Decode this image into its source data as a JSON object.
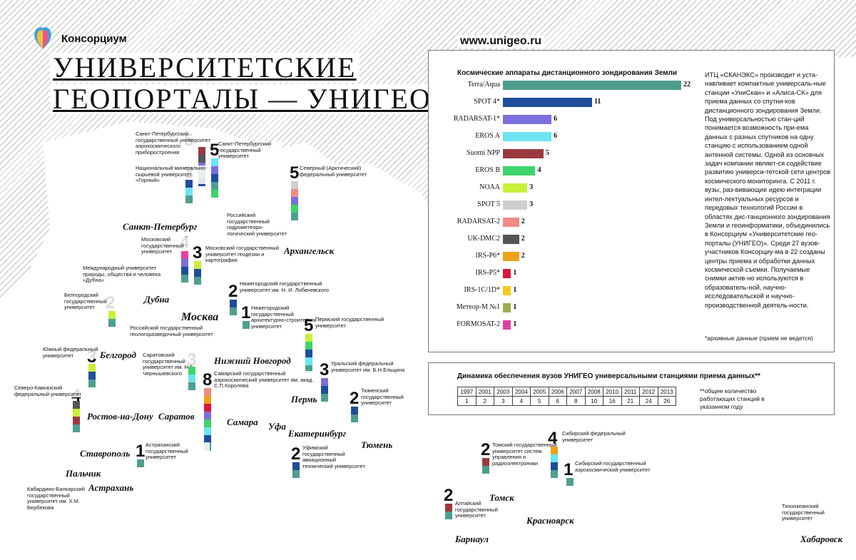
{
  "colors": {
    "Terra/Aqua": "#4e9e90",
    "SPOT 4*": "#1f4d9a",
    "RADARSAT-1*": "#7b6fdc",
    "EROS A": "#6de4f2",
    "Suomi NPP": "#9a3a3f",
    "EROS B": "#3fd46a",
    "NOAA": "#c8ef3a",
    "SPOT 5": "#cfcfcf",
    "RADARSAT-2": "#f08a86",
    "UK-DMC2": "#555555",
    "IRS-P6*": "#eea21a",
    "IRS-P5*": "#d8173b",
    "IRS-1C/1D*": "#f2cb1f",
    "Метеор-М №1": "#a0ac50",
    "FORMOSAT-2": "#e040a0"
  },
  "header": {
    "brand": "Консорциум",
    "title_line1": "УНИВЕРСИТЕТСКИЕ",
    "title_line2": "ГЕОПОРТАЛЫ — УНИГЕО",
    "site": "www.unigeo.ru"
  },
  "chart_data": {
    "type": "bar",
    "title": "Космические аппараты дистанционного зондирования Земли",
    "categories": [
      "Terra/Aqua",
      "SPOT 4*",
      "RADARSAT-1*",
      "EROS A",
      "Suomi NPP",
      "EROS B",
      "NOAA",
      "SPOT 5",
      "RADARSAT-2",
      "UK-DMC2",
      "IRS-P6*",
      "IRS-P5*",
      "IRS-1C/1D*",
      "Метеор-М №1",
      "FORMOSAT-2"
    ],
    "values": [
      22,
      11,
      6,
      6,
      5,
      4,
      3,
      3,
      2,
      2,
      2,
      1,
      1,
      1,
      1
    ],
    "xlim": [
      0,
      22
    ]
  },
  "side_text": "ИТЦ «СКАНЭКС» производит и уста-навливает компактные универсаль-ные станции «УниСкан» и «Алиса-СК» для приема данных со спутни-ков дистанционного зондирования Земли. Под универсальностью стан-ций понимается возможность при-ема данных с разных спутников на одну станцию с использованием одной антенной системы. Одной из основных задач компании являет-ся содействие развитию универси-тетской сети центров космического мониторинга. С 2011 г. вузы, раз-вивающие идею интеграции интел-лектуальных ресурсов и передовых технологий России в областях дис-танционного зондирования Земли и геоинформатики, объединились в Консорциум «Университетские гео-порталы (УНИГЕО)». Среди 27 вузов-участников Консорциу-ма в 22 созданы центры приема и обработки данных космической съемки. Получаемые снимки актив-но используются в образователь-ной, научно-исследовательской и научно-производственной деятель-ности.",
  "archive_note": "*архивные данные (прием не ведется)",
  "dynamics": {
    "title": "Динамика обеспечения вузов УНИГЕО универсальными станциями приема данных**",
    "years": [
      "1997",
      "2001",
      "2003",
      "2004",
      "2005",
      "2006",
      "2007",
      "2008",
      "2010",
      "2011",
      "2012",
      "2013"
    ],
    "counts": [
      "1",
      "2",
      "3",
      "4",
      "5",
      "6",
      "8",
      "10",
      "16",
      "21",
      "24",
      "26"
    ],
    "note": "**общее количество работающих станций в указанном году"
  },
  "universities": [
    {
      "num": "5",
      "text": "Санкт-Петербургский государственный университет аэрокосмического приборостроения",
      "stack": [
        "#9a3a3f",
        "#555555",
        "#7b6fdc",
        "#4e9e90",
        "#1f4d9a"
      ]
    },
    {
      "num": "5",
      "text": "Санкт-Петербургский государственный университет",
      "stack": [
        "#6de4f2",
        "#7b6fdc",
        "#1f4d9a",
        "#4e9e90",
        "#3fd46a"
      ]
    },
    {
      "num": "3",
      "text": "Национальный минерально-сырьевой университет «Горный»",
      "stack": [
        "#1f4d9a",
        "#6de4f2",
        "#4e9e90"
      ]
    },
    {
      "num": "",
      "text": "Российский государственный гидрометеоро-логический университет",
      "stack": []
    },
    {
      "num": "5",
      "text": "Северный (Арктический) федеральный университет",
      "stack": [
        "#cfcfcf",
        "#f08a86",
        "#7b6fdc",
        "#3fd46a",
        "#4e9e90"
      ]
    },
    {
      "num": "4",
      "text": "Московский государственный университет",
      "stack": [
        "#e040a0",
        "#7b6fdc",
        "#1f4d9a",
        "#4e9e90"
      ]
    },
    {
      "num": "3",
      "text": "Московский государственный университет геодезии и картографии",
      "stack": [
        "#c8ef3a",
        "#1f4d9a",
        "#4e9e90"
      ]
    },
    {
      "num": "",
      "text": "Международный университет природы, общества и человека «Дубна»",
      "stack": []
    },
    {
      "num": "2",
      "text": "Белгородский государственный университет",
      "stack": [
        "#c8ef3a",
        "#4e9e90"
      ]
    },
    {
      "num": "2",
      "text": "Нижегородский государственный университет им. Н. И. Лобачевского",
      "stack": [
        "#1f4d9a",
        "#4e9e90"
      ]
    },
    {
      "num": "1",
      "text": "Нижегородский государственный архитектурно-строительный университет",
      "stack": [
        "#4e9e90"
      ]
    },
    {
      "num": "",
      "text": "Российский государственный геологоразведочный университет",
      "stack": []
    },
    {
      "num": "5",
      "text": "Пермский государственный университет",
      "stack": [
        "#c8ef3a",
        "#3fd46a",
        "#1f4d9a",
        "#6de4f2",
        "#4e9e90"
      ]
    },
    {
      "num": "3",
      "text": "Южный федеральный университет",
      "stack": [
        "#c8ef3a",
        "#1f4d9a",
        "#4e9e90"
      ]
    },
    {
      "num": "3",
      "text": "Саратовский государственный университет им. Н.Г. Чернышевского",
      "stack": [
        "#3fd46a",
        "#6de4f2",
        "#4e9e90"
      ]
    },
    {
      "num": "8",
      "text": "Самарский государственный аэрокосмический университет им. акад. С.П.Королева",
      "stack": [
        "#f08a86",
        "#eea21a",
        "#d8173b",
        "#7b6fdc",
        "#3fd46a",
        "#6de4f2",
        "#1f4d9a",
        "#4e9e90"
      ]
    },
    {
      "num": "3",
      "text": "Уральский федеральный университет им. Б.Н.Ельцина",
      "stack": [
        "#7b6fdc",
        "#1f4d9a",
        "#4e9e90"
      ]
    },
    {
      "num": "2",
      "text": "Тюменский государственный университет",
      "stack": [
        "#1f4d9a",
        "#4e9e90"
      ]
    },
    {
      "num": "4",
      "text": "Северо-Кавказский федеральный университет",
      "stack": [
        "#555555",
        "#c8ef3a",
        "#9a3a3f",
        "#4e9e90"
      ]
    },
    {
      "num": "1",
      "text": "Астраханский государственный университет",
      "stack": [
        "#4e9e90"
      ]
    },
    {
      "num": "2",
      "text": "Уфимский государственный авиационный технический университет",
      "stack": [
        "#1f4d9a",
        "#4e9e90"
      ]
    },
    {
      "num": "",
      "text": "Кабардино-Балкарский государственный университет им. Х.М. Бербекова",
      "stack": []
    },
    {
      "num": "2",
      "text": "Томский государственный университет систем управления и радиоэлектроники",
      "stack": [
        "#9a3a3f",
        "#4e9e90"
      ]
    },
    {
      "num": "4",
      "text": "Сибирский федеральный университет",
      "stack": [
        "#eea21a",
        "#6de4f2",
        "#1f4d9a",
        "#4e9e90"
      ]
    },
    {
      "num": "1",
      "text": "Сибирский государственный аэрокосмический университет",
      "stack": [
        "#4e9e90"
      ]
    },
    {
      "num": "2",
      "text": "Алтайский государственный университет",
      "stack": [
        "#9a3a3f",
        "#4e9e90"
      ]
    },
    {
      "num": "",
      "text": "Тихоокеанский государственный университет",
      "stack": []
    }
  ],
  "cities": [
    "Санкт-Петербург",
    "Архангельск",
    "Дубна",
    "Москва",
    "Белгород",
    "Нижний Новгород",
    "Пермь",
    "Ростов-на-Дону",
    "Саратов",
    "Самара",
    "Уфа",
    "Екатеринбург",
    "Тюмень",
    "Ставрополь",
    "Пальчик",
    "Астрахань",
    "Томск",
    "Красноярск",
    "Барнаул",
    "Хабаровск"
  ]
}
